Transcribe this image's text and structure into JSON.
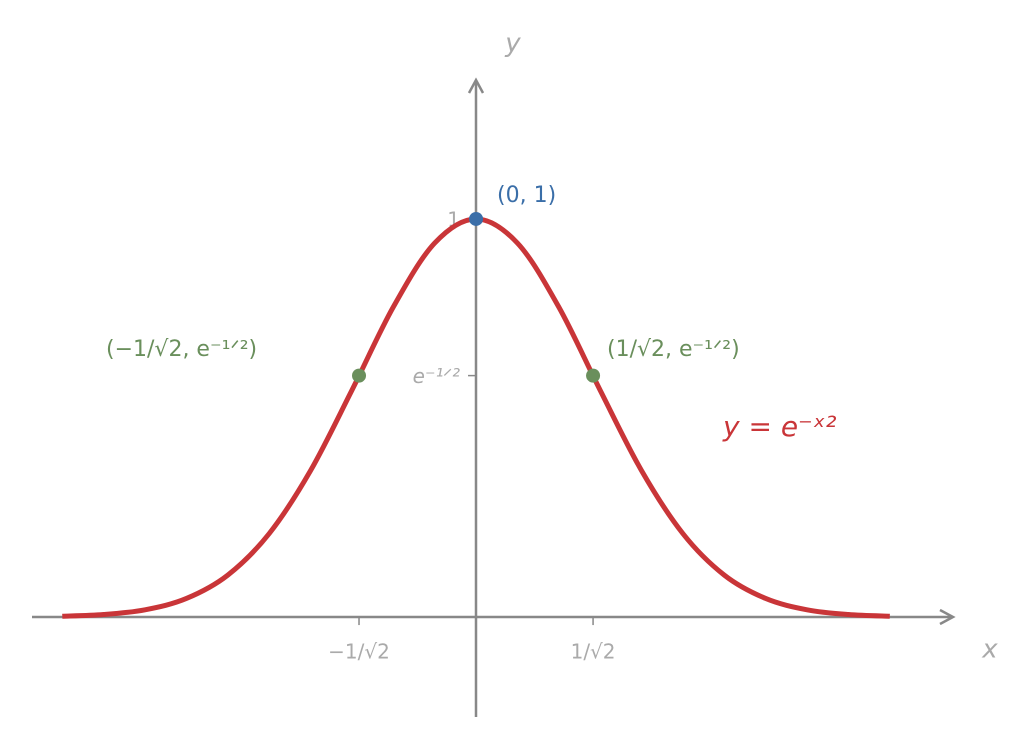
{
  "chart_data": {
    "type": "line",
    "x_label": "x",
    "y_label": "y",
    "xlim": [
      -2.683,
      2.894
    ],
    "ylim": [
      -0.251,
      1.354
    ],
    "xticks": [
      {
        "value": -0.7071,
        "label": "−1/√2"
      },
      {
        "value": 0.7071,
        "label": "1/√2"
      }
    ],
    "yticks": [
      {
        "value": 1,
        "label": "1"
      },
      {
        "value": 0.6065,
        "label": "e⁻¹ᐟ²"
      }
    ],
    "x": [
      -2.5,
      -2.25,
      -2,
      -1.75,
      -1.5,
      -1.25,
      -1,
      -0.75,
      -0.5,
      -0.25,
      0,
      0.25,
      0.5,
      0.75,
      1,
      1.25,
      1.5,
      1.75,
      2,
      2.25,
      2.5
    ],
    "series": [
      {
        "name": "y = e⁻ˣ²",
        "color": "#c93538",
        "values": [
          0.00193,
          0.00633,
          0.01832,
          0.04677,
          0.1054,
          0.20961,
          0.36788,
          0.56978,
          0.7788,
          0.93941,
          1,
          0.93941,
          0.7788,
          0.56978,
          0.36788,
          0.20961,
          0.1054,
          0.04677,
          0.01832,
          0.00633,
          0.00193
        ]
      }
    ],
    "points": [
      {
        "x": 0,
        "y": 1,
        "label": "(0, 1)",
        "color": "#3a6ea8"
      },
      {
        "x": 0.7071,
        "y": 0.6065,
        "label": "(1/√2, e⁻¹ᐟ²)",
        "color": "#6a8f5c"
      },
      {
        "x": -0.7071,
        "y": 0.6065,
        "label": "(−1/√2, e⁻¹ᐟ²)",
        "color": "#6a8f5c"
      }
    ]
  }
}
